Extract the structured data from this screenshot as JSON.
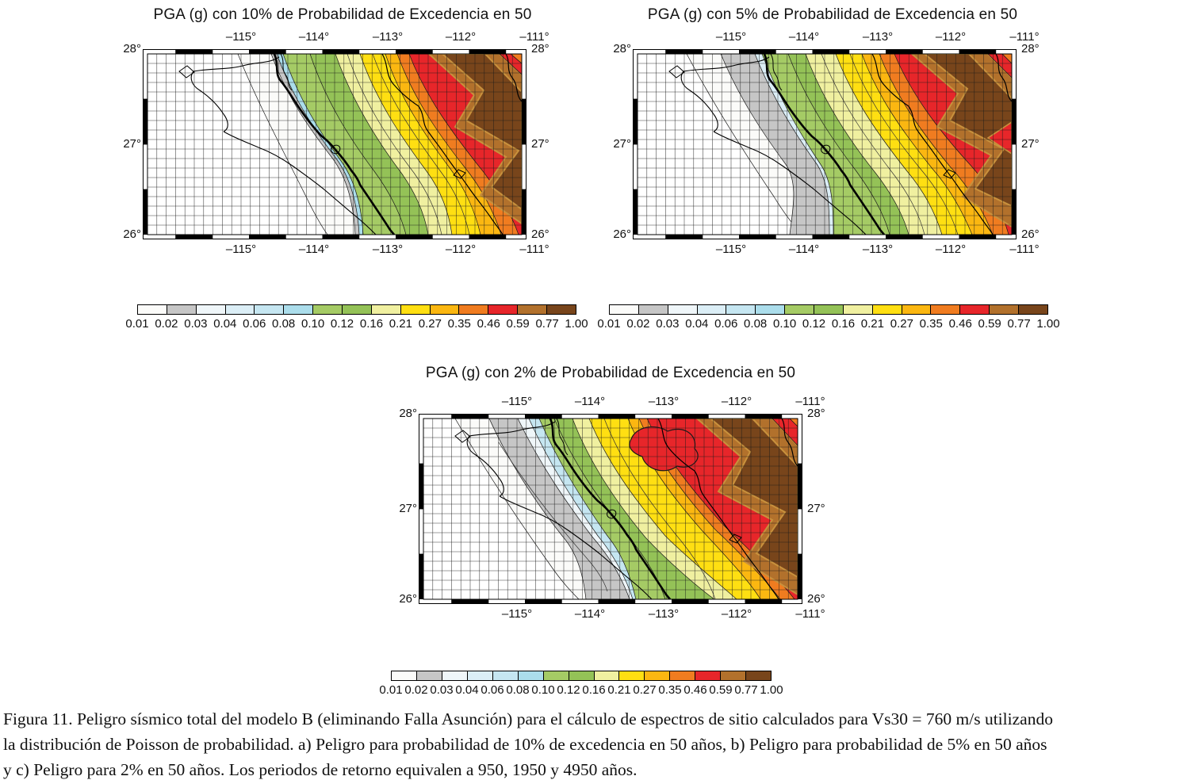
{
  "maps": [
    {
      "panel": "a",
      "title": "PGA (g) con 10% de Probabilidad de Excedencia en 50"
    },
    {
      "panel": "b",
      "title": "PGA (g) con 5% de Probabilidad de Excedencia en 50"
    },
    {
      "panel": "c",
      "title": "PGA (g) con 2% de Probabilidad  de Excedencia en 50"
    }
  ],
  "axis": {
    "lon_labels": [
      "–115°",
      "–114°",
      "–113°",
      "–112°",
      "–111°"
    ],
    "lat_labels": [
      "28°",
      "27°",
      "26°"
    ]
  },
  "legend": {
    "values": [
      "0.01",
      "0.02",
      "0.03",
      "0.04",
      "0.06",
      "0.08",
      "0.10",
      "0.12",
      "0.16",
      "0.21",
      "0.27",
      "0.35",
      "0.46",
      "0.59",
      "0.77",
      "1.00"
    ],
    "colors": [
      "#fbfbf9",
      "#c6c6c6",
      "#eff6f9",
      "#dbeef6",
      "#c5e6f1",
      "#abddeb",
      "#a5cb65",
      "#94c257",
      "#f0f0a0",
      "#ffdf12",
      "#fbb711",
      "#f07c20",
      "#e7262a",
      "#b2712c",
      "#78451b"
    ]
  },
  "palette": {
    "contour_highlight": "#c8913d",
    "map_background": "#ffffff",
    "frame_color": "#000000"
  },
  "caption": {
    "line1": "Figura 11. Peligro sísmico total del modelo B (eliminando Falla Asunción) para el cálculo de espectros de sitio calculados para Vs30 = 760 m/s utilizando",
    "line2": "la distribución de Poisson de probabilidad. a) Peligro para probabilidad de 10% de excedencia en 50 años, b) Peligro para probabilidad de 5% en 50 años",
    "line3": "y c) Peligro para 2% en 50 años. Los periodos de retorno equivalen a 950, 1950 y 4950 años."
  },
  "chart_data": {
    "type": "heatmap",
    "variable": "PGA (g)",
    "panels": [
      {
        "panel": "a",
        "exceedance_probability_percent": 10,
        "window_years": 50,
        "return_period_years": 950
      },
      {
        "panel": "b",
        "exceedance_probability_percent": 5,
        "window_years": 50,
        "return_period_years": 1950
      },
      {
        "panel": "c",
        "exceedance_probability_percent": 2,
        "window_years": 50,
        "return_period_years": 4950
      }
    ],
    "x_axis": {
      "label": "longitude",
      "ticks_deg": [
        -115,
        -114,
        -113,
        -112,
        -111
      ]
    },
    "y_axis": {
      "label": "latitude",
      "ticks_deg": [
        28,
        27,
        26
      ]
    },
    "color_scale_breakpoints_g": [
      0.01,
      0.02,
      0.03,
      0.04,
      0.06,
      0.08,
      0.1,
      0.12,
      0.16,
      0.21,
      0.27,
      0.35,
      0.46,
      0.59,
      0.77,
      1.0
    ],
    "gradient_direction": "values increase from southwest (white, <0.02 g) to a northeast ridge (dark brown, 0.77–1.00 g), bands parallel to the Baja California coast"
  }
}
